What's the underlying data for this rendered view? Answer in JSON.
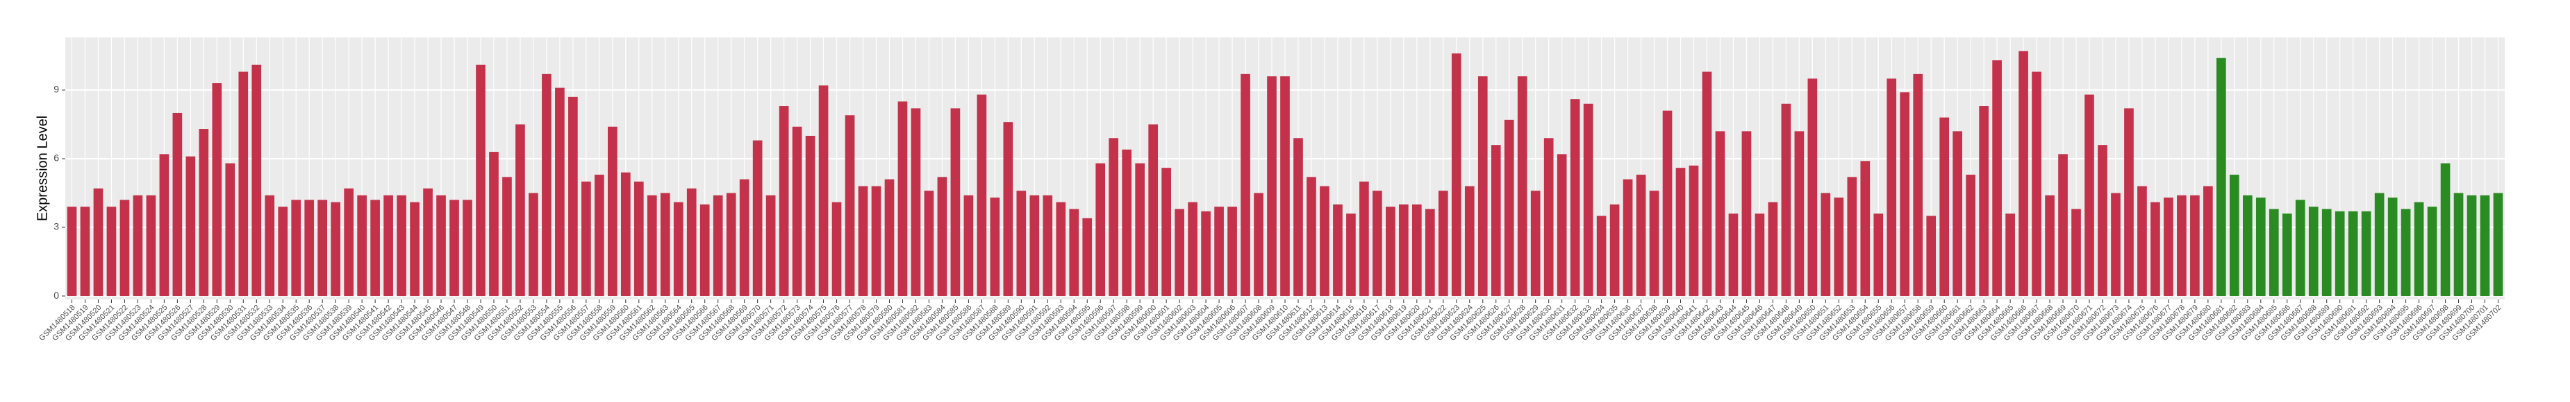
{
  "chart_data": {
    "type": "bar",
    "y_label": "Expression Level",
    "categories": [
      "GSM1480518",
      "GSM1480519",
      "GSM1480520",
      "GSM1480521",
      "GSM1480522",
      "GSM1480523",
      "GSM1480524",
      "GSM1480525",
      "GSM1480526",
      "GSM1480527",
      "GSM1480528",
      "GSM1480529",
      "GSM1480530",
      "GSM1480531",
      "GSM1480532",
      "GSM1480533",
      "GSM1480534",
      "GSM1480535",
      "GSM1480536",
      "GSM1480537",
      "GSM1480538",
      "GSM1480539",
      "GSM1480540",
      "GSM1480541",
      "GSM1480542",
      "GSM1480543",
      "GSM1480544",
      "GSM1480545",
      "GSM1480546",
      "GSM1480547",
      "GSM1480548",
      "GSM1480549",
      "GSM1480550",
      "GSM1480551",
      "GSM1480552",
      "GSM1480553",
      "GSM1480554",
      "GSM1480555",
      "GSM1480556",
      "GSM1480557",
      "GSM1480558",
      "GSM1480559",
      "GSM1480560",
      "GSM1480561",
      "GSM1480562",
      "GSM1480563",
      "GSM1480564",
      "GSM1480565",
      "GSM1480566",
      "GSM1480567",
      "GSM1480568",
      "GSM1480569",
      "GSM1480570",
      "GSM1480571",
      "GSM1480572",
      "GSM1480573",
      "GSM1480574",
      "GSM1480575",
      "GSM1480576",
      "GSM1480577",
      "GSM1480578",
      "GSM1480579",
      "GSM1480580",
      "GSM1480581",
      "GSM1480582",
      "GSM1480583",
      "GSM1480584",
      "GSM1480585",
      "GSM1480586",
      "GSM1480587",
      "GSM1480588",
      "GSM1480589",
      "GSM1480590",
      "GSM1480591",
      "GSM1480592",
      "GSM1480593",
      "GSM1480594",
      "GSM1480595",
      "GSM1480596",
      "GSM1480597",
      "GSM1480598",
      "GSM1480599",
      "GSM1480600",
      "GSM1480601",
      "GSM1480602",
      "GSM1480603",
      "GSM1480604",
      "GSM1480605",
      "GSM1480606",
      "GSM1480607",
      "GSM1480608",
      "GSM1480609",
      "GSM1480610",
      "GSM1480611",
      "GSM1480612",
      "GSM1480613",
      "GSM1480614",
      "GSM1480615",
      "GSM1480616",
      "GSM1480617",
      "GSM1480618",
      "GSM1480619",
      "GSM1480620",
      "GSM1480621",
      "GSM1480622",
      "GSM1480623",
      "GSM1480624",
      "GSM1480625",
      "GSM1480626",
      "GSM1480627",
      "GSM1480628",
      "GSM1480629",
      "GSM1480630",
      "GSM1480631",
      "GSM1480632",
      "GSM1480633",
      "GSM1480634",
      "GSM1480635",
      "GSM1480636",
      "GSM1480637",
      "GSM1480638",
      "GSM1480639",
      "GSM1480640",
      "GSM1480641",
      "GSM1480642",
      "GSM1480643",
      "GSM1480644",
      "GSM1480645",
      "GSM1480646",
      "GSM1480647",
      "GSM1480648",
      "GSM1480649",
      "GSM1480650",
      "GSM1480651",
      "GSM1480652",
      "GSM1480653",
      "GSM1480654",
      "GSM1480655",
      "GSM1480656",
      "GSM1480657",
      "GSM1480658",
      "GSM1480659",
      "GSM1480660",
      "GSM1480661",
      "GSM1480662",
      "GSM1480663",
      "GSM1480664",
      "GSM1480665",
      "GSM1480666",
      "GSM1480667",
      "GSM1480668",
      "GSM1480669",
      "GSM1480670",
      "GSM1480671",
      "GSM1480672",
      "GSM1480673",
      "GSM1480674",
      "GSM1480675",
      "GSM1480676",
      "GSM1480677",
      "GSM1480678",
      "GSM1480679",
      "GSM1480680",
      "GSM1480681",
      "GSM1480682",
      "GSM1480683",
      "GSM1480684",
      "GSM1480685",
      "GSM1480686",
      "GSM1480687",
      "GSM1480688",
      "GSM1480689",
      "GSM1480690",
      "GSM1480691",
      "GSM1480692",
      "GSM1480693",
      "GSM1480694",
      "GSM1480695",
      "GSM1480696",
      "GSM1480697",
      "GSM1480698",
      "GSM1480699",
      "GSM1480700",
      "GSM1480701",
      "GSM1480702"
    ],
    "values": [
      3.9,
      3.9,
      4.7,
      3.9,
      4.2,
      4.4,
      4.4,
      6.2,
      8.0,
      6.1,
      7.3,
      9.3,
      5.8,
      9.8,
      10.1,
      4.4,
      3.9,
      4.2,
      4.2,
      4.2,
      4.1,
      4.7,
      4.4,
      4.2,
      4.4,
      4.4,
      4.1,
      4.7,
      4.4,
      4.2,
      4.2,
      10.1,
      6.3,
      5.2,
      7.5,
      4.5,
      9.7,
      9.1,
      8.7,
      5.0,
      5.3,
      7.4,
      5.4,
      5.0,
      4.4,
      4.5,
      4.1,
      4.7,
      4.0,
      4.4,
      4.5,
      5.1,
      6.8,
      4.4,
      8.3,
      7.4,
      7.0,
      9.2,
      4.1,
      7.9,
      4.8,
      4.8,
      5.1,
      8.5,
      8.2,
      4.6,
      5.2,
      8.2,
      4.4,
      8.8,
      4.3,
      7.6,
      4.6,
      4.4,
      4.4,
      4.1,
      3.8,
      3.4,
      5.8,
      6.9,
      6.4,
      5.8,
      7.5,
      5.6,
      3.8,
      4.1,
      3.7,
      3.9,
      3.9,
      9.7,
      4.5,
      9.6,
      9.6,
      6.9,
      5.2,
      4.8,
      4.0,
      3.6,
      5.0,
      4.6,
      3.9,
      4.0,
      4.0,
      3.8,
      4.6,
      10.6,
      4.8,
      9.6,
      6.6,
      7.7,
      9.6,
      4.6,
      6.9,
      6.2,
      8.6,
      8.4,
      3.5,
      4.0,
      5.1,
      5.3,
      4.6,
      8.1,
      5.6,
      5.7,
      9.8,
      7.2,
      3.6,
      7.2,
      3.6,
      4.1,
      8.4,
      7.2,
      9.5,
      4.5,
      4.3,
      5.2,
      5.9,
      3.6,
      9.5,
      8.9,
      9.7,
      3.5,
      7.8,
      7.2,
      5.3,
      8.3,
      10.3,
      3.6,
      10.7,
      9.8,
      4.4,
      6.2,
      3.8,
      8.8,
      6.6,
      4.5,
      8.2,
      4.8,
      4.1,
      4.3,
      4.4,
      4.4,
      4.8,
      10.4,
      5.3,
      4.4,
      4.3,
      3.8,
      3.6,
      4.2,
      3.9,
      3.8,
      3.7,
      3.7,
      3.7,
      4.5,
      4.3,
      3.8,
      4.1,
      3.9,
      5.8,
      4.5,
      4.4,
      4.4,
      4.5
    ],
    "colors": [
      "#c3324a",
      "#c3324a",
      "#c3324a",
      "#c3324a",
      "#c3324a",
      "#c3324a",
      "#c3324a",
      "#c3324a",
      "#c3324a",
      "#c3324a",
      "#c3324a",
      "#c3324a",
      "#c3324a",
      "#c3324a",
      "#c3324a",
      "#c3324a",
      "#c3324a",
      "#c3324a",
      "#c3324a",
      "#c3324a",
      "#c3324a",
      "#c3324a",
      "#c3324a",
      "#c3324a",
      "#c3324a",
      "#c3324a",
      "#c3324a",
      "#c3324a",
      "#c3324a",
      "#c3324a",
      "#c3324a",
      "#c3324a",
      "#c3324a",
      "#c3324a",
      "#c3324a",
      "#c3324a",
      "#c3324a",
      "#c3324a",
      "#c3324a",
      "#c3324a",
      "#c3324a",
      "#c3324a",
      "#c3324a",
      "#c3324a",
      "#c3324a",
      "#c3324a",
      "#c3324a",
      "#c3324a",
      "#c3324a",
      "#c3324a",
      "#c3324a",
      "#c3324a",
      "#c3324a",
      "#c3324a",
      "#c3324a",
      "#c3324a",
      "#c3324a",
      "#c3324a",
      "#c3324a",
      "#c3324a",
      "#c3324a",
      "#c3324a",
      "#c3324a",
      "#c3324a",
      "#c3324a",
      "#c3324a",
      "#c3324a",
      "#c3324a",
      "#c3324a",
      "#c3324a",
      "#c3324a",
      "#c3324a",
      "#c3324a",
      "#c3324a",
      "#c3324a",
      "#c3324a",
      "#c3324a",
      "#c3324a",
      "#c3324a",
      "#c3324a",
      "#c3324a",
      "#c3324a",
      "#c3324a",
      "#c3324a",
      "#c3324a",
      "#c3324a",
      "#c3324a",
      "#c3324a",
      "#c3324a",
      "#c3324a",
      "#c3324a",
      "#c3324a",
      "#c3324a",
      "#c3324a",
      "#c3324a",
      "#c3324a",
      "#c3324a",
      "#c3324a",
      "#c3324a",
      "#c3324a",
      "#c3324a",
      "#c3324a",
      "#c3324a",
      "#c3324a",
      "#c3324a",
      "#c3324a",
      "#c3324a",
      "#c3324a",
      "#c3324a",
      "#c3324a",
      "#c3324a",
      "#c3324a",
      "#c3324a",
      "#c3324a",
      "#c3324a",
      "#c3324a",
      "#c3324a",
      "#c3324a",
      "#c3324a",
      "#c3324a",
      "#c3324a",
      "#c3324a",
      "#c3324a",
      "#c3324a",
      "#c3324a",
      "#c3324a",
      "#c3324a",
      "#c3324a",
      "#c3324a",
      "#c3324a",
      "#c3324a",
      "#c3324a",
      "#c3324a",
      "#c3324a",
      "#c3324a",
      "#c3324a",
      "#c3324a",
      "#c3324a",
      "#c3324a",
      "#c3324a",
      "#c3324a",
      "#c3324a",
      "#c3324a",
      "#c3324a",
      "#c3324a",
      "#c3324a",
      "#c3324a",
      "#c3324a",
      "#c3324a",
      "#c3324a",
      "#c3324a",
      "#c3324a",
      "#c3324a",
      "#c3324a",
      "#c3324a",
      "#c3324a",
      "#c3324a",
      "#c3324a",
      "#c3324a",
      "#c3324a",
      "#c3324a",
      "#c3324a",
      "#c3324a",
      "#2a8b22",
      "#2a8b22",
      "#2a8b22",
      "#2a8b22",
      "#2a8b22",
      "#2a8b22",
      "#2a8b22",
      "#2a8b22",
      "#2a8b22",
      "#2a8b22",
      "#2a8b22",
      "#2a8b22",
      "#2a8b22",
      "#2a8b22",
      "#2a8b22",
      "#2a8b22",
      "#2a8b22",
      "#2a8b22",
      "#2a8b22",
      "#2a8b22",
      "#2a8b22",
      "#2a8b22"
    ],
    "ylim": [
      -0.15,
      11.3
    ],
    "yticks": [
      0,
      3,
      6,
      9
    ],
    "grid": true
  }
}
